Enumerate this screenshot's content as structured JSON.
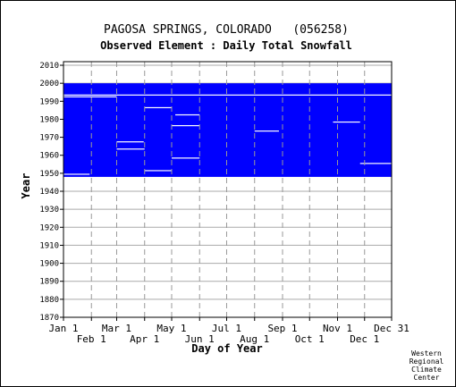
{
  "chart_data": {
    "type": "heatmap",
    "title": "PAGOSA SPRINGS, COLORADO   (056258)",
    "subtitle": "Observed Element : Daily Total Snowfall",
    "xlabel": "Day of Year",
    "ylabel": "Year",
    "x_ticks_upper": [
      "Jan 1",
      "Mar 1",
      "May 1",
      "Jul 1",
      "Sep 1",
      "Nov 1",
      "Dec 31"
    ],
    "x_ticks_lower": [
      "Feb 1",
      "Apr 1",
      "Jun 1",
      "Aug 1",
      "Oct 1",
      "Dec 1"
    ],
    "x_tick_days_upper": [
      1,
      60,
      121,
      182,
      244,
      305,
      365
    ],
    "x_tick_days_lower": [
      32,
      91,
      152,
      213,
      274,
      335
    ],
    "xlim": [
      1,
      365
    ],
    "y_ticks": [
      1870,
      1880,
      1890,
      1900,
      1910,
      1920,
      1930,
      1940,
      1950,
      1960,
      1970,
      1980,
      1990,
      2000,
      2010
    ],
    "ylim": [
      1870,
      2012
    ],
    "grid": true,
    "data_color": "#0000ff",
    "series": [
      {
        "year_start": 1948,
        "year_end": 1999,
        "day_start": 1,
        "day_end": 365
      }
    ],
    "gaps": [
      {
        "year": 1993,
        "day_start": 1,
        "day_end": 365
      },
      {
        "year": 1992,
        "day_start": 1,
        "day_end": 60
      },
      {
        "year": 1986,
        "day_start": 91,
        "day_end": 121
      },
      {
        "year": 1982,
        "day_start": 125,
        "day_end": 152
      },
      {
        "year": 1978,
        "day_start": 300,
        "day_end": 330
      },
      {
        "year": 1976,
        "day_start": 121,
        "day_end": 152
      },
      {
        "year": 1973,
        "day_start": 213,
        "day_end": 240
      },
      {
        "year": 1967,
        "day_start": 60,
        "day_end": 90
      },
      {
        "year": 1963,
        "day_start": 60,
        "day_end": 91
      },
      {
        "year": 1958,
        "day_start": 121,
        "day_end": 152
      },
      {
        "year": 1955,
        "day_start": 330,
        "day_end": 365
      },
      {
        "year": 1951,
        "day_start": 91,
        "day_end": 121
      },
      {
        "year": 1949,
        "day_start": 1,
        "day_end": 30
      }
    ],
    "credit": [
      "Western",
      "Regional",
      "Climate",
      "Center"
    ]
  }
}
